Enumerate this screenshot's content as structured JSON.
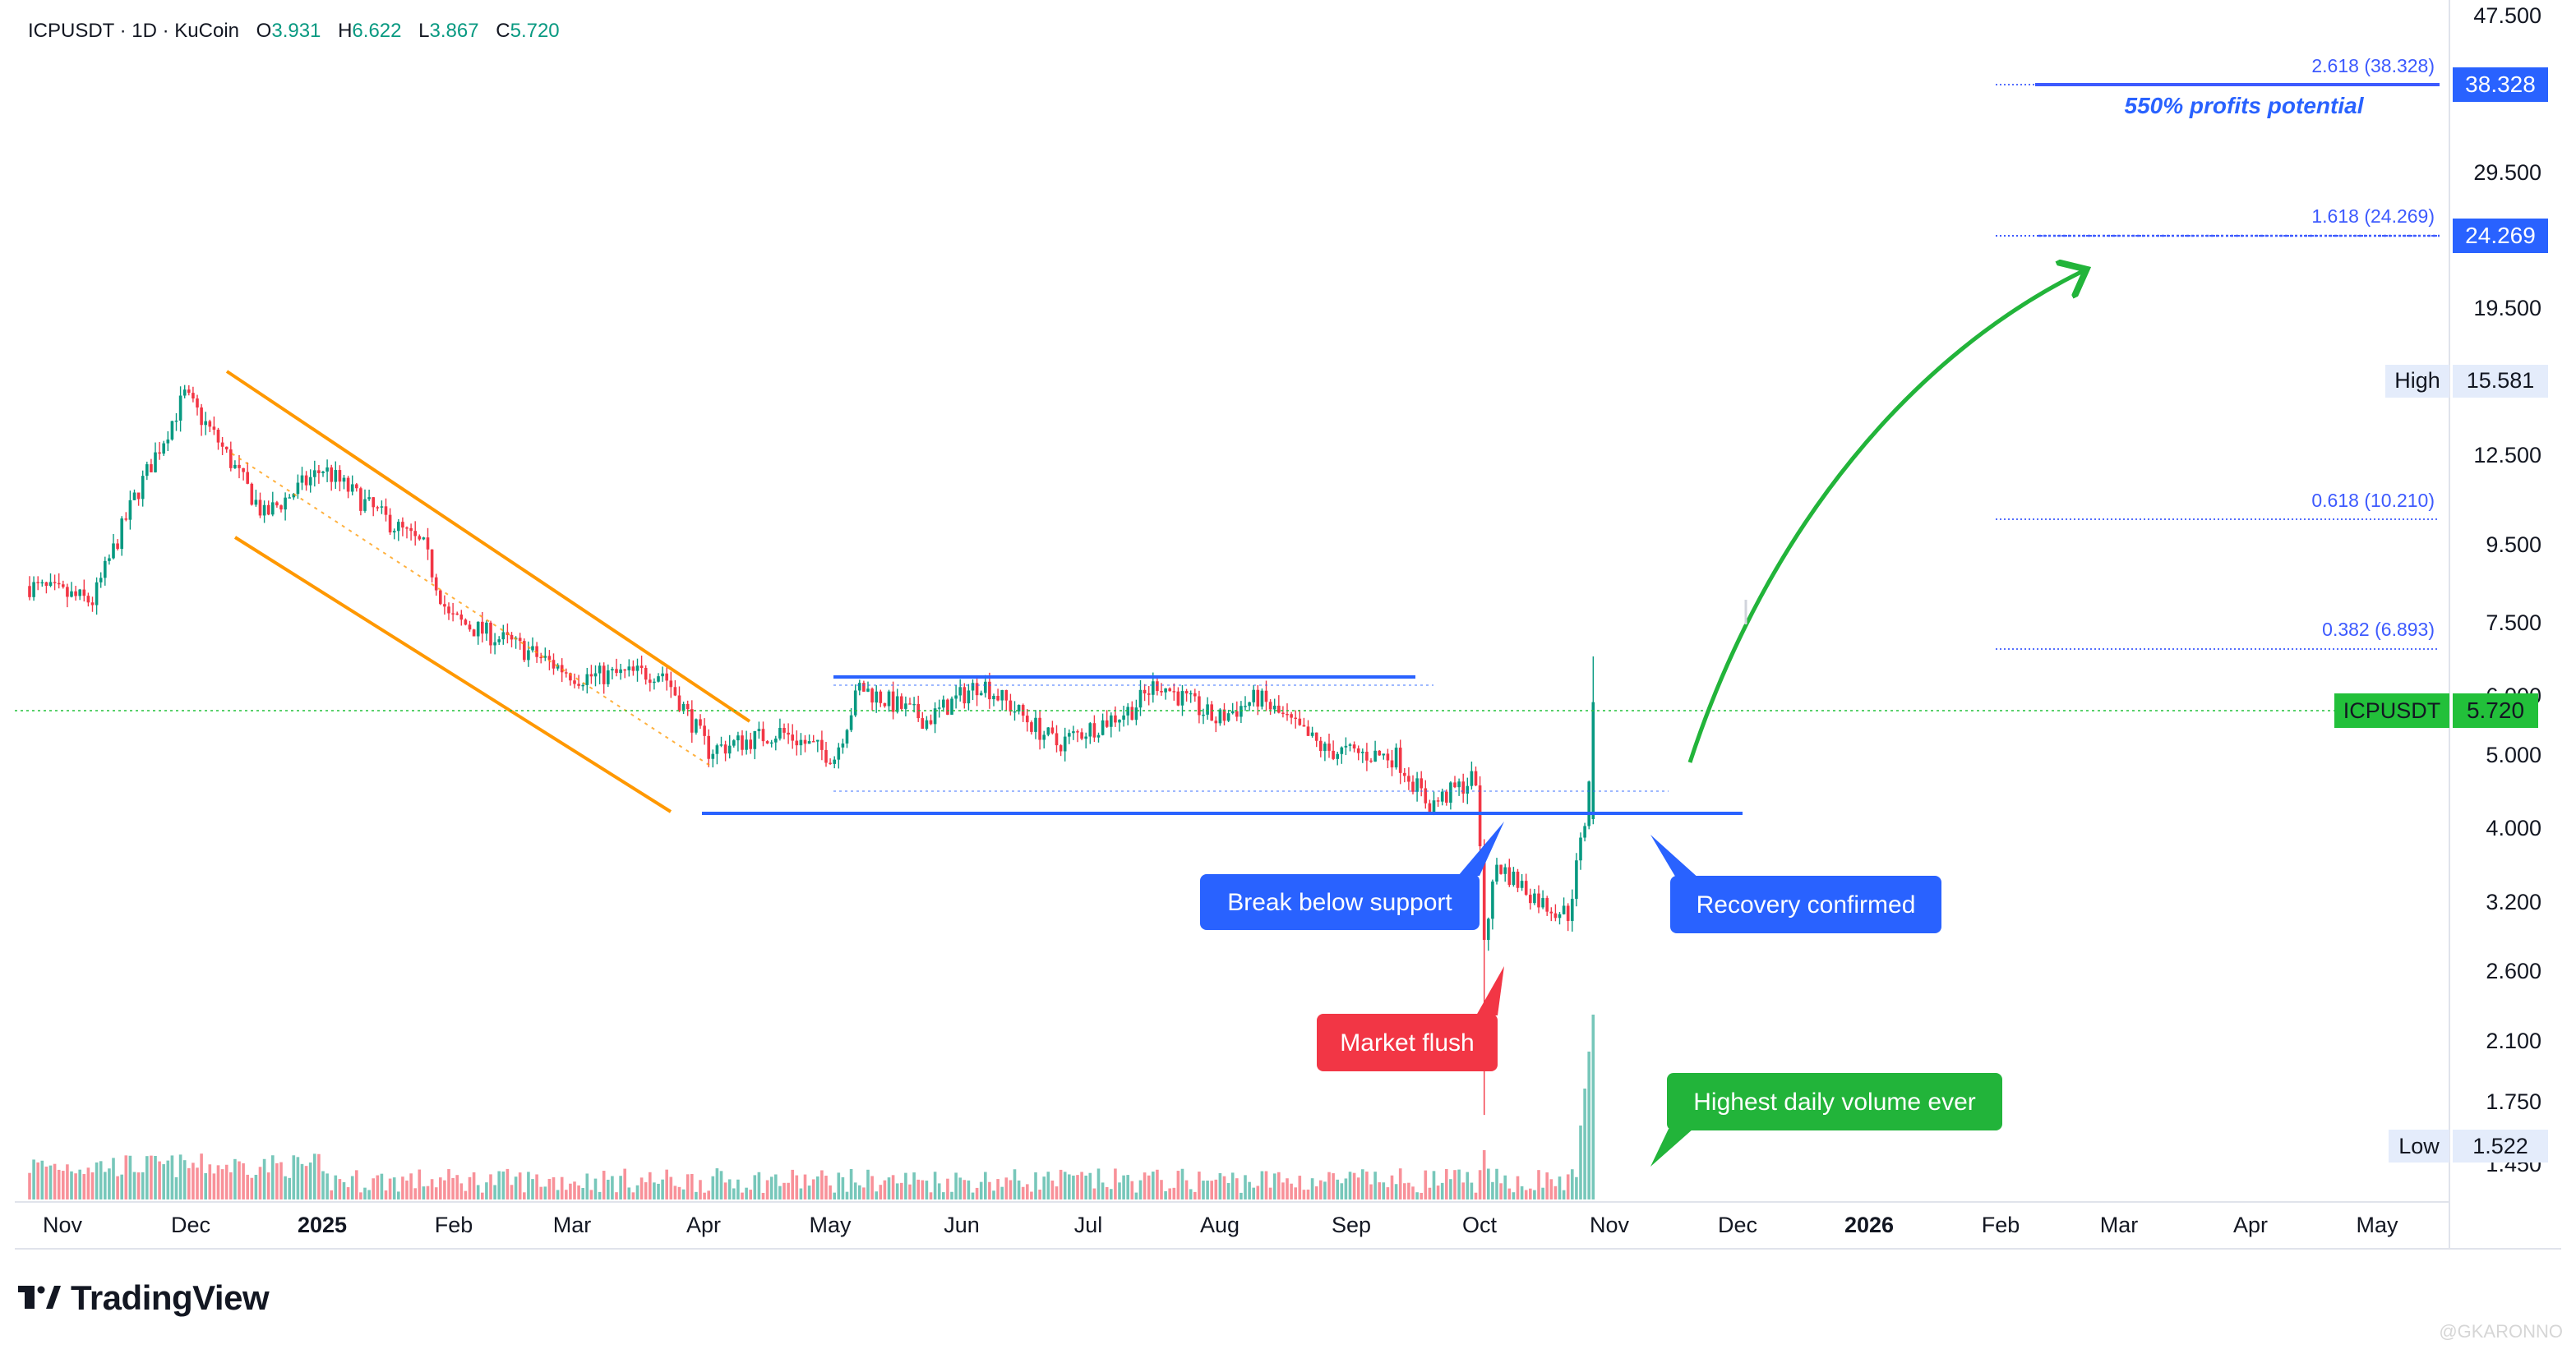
{
  "header": {
    "symbol": "ICPUSDT",
    "interval": "1D",
    "exchange": "KuCoin",
    "open_label": "O",
    "open": "3.931",
    "high_label": "H",
    "high": "6.622",
    "low_label": "L",
    "low": "3.867",
    "close_label": "C",
    "close": "5.720"
  },
  "brand": {
    "name": "TradingView"
  },
  "watermark": "@GKARONNO",
  "colors": {
    "up": "#089981",
    "down": "#f23645",
    "support": "#2962ff",
    "channel": "#ff9800",
    "arrow": "#22b43a",
    "fib": "#3d5afe",
    "price": "#22c03a"
  },
  "chart_data": {
    "type": "candlestick",
    "symbol": "ICPUSDT",
    "interval": "1D",
    "scale": "log",
    "ylim": [
      1.35,
      47.5
    ],
    "x_ticks": [
      "Nov",
      "Dec",
      "2025",
      "Feb",
      "Mar",
      "Apr",
      "May",
      "Jun",
      "Jul",
      "Aug",
      "Sep",
      "Oct",
      "Nov",
      "Dec",
      "2026",
      "Feb",
      "Mar",
      "Apr",
      "May"
    ],
    "y_ticks": [
      "47.500",
      "38.328",
      "29.500",
      "24.269",
      "19.500",
      "15.581",
      "12.500",
      "9.500",
      "7.500",
      "6.000",
      "5.720",
      "5.000",
      "4.000",
      "3.200",
      "2.600",
      "2.100",
      "1.750",
      "1.522",
      "1.450"
    ],
    "price_path": [
      [
        "2024-10-28",
        8.3
      ],
      [
        "2024-11-12",
        7.9
      ],
      [
        "2024-11-22",
        11.0
      ],
      [
        "2024-12-04",
        15.3
      ],
      [
        "2024-12-12",
        13.2
      ],
      [
        "2024-12-23",
        10.4
      ],
      [
        "2025-01-06",
        12.1
      ],
      [
        "2025-01-17",
        10.7
      ],
      [
        "2025-01-30",
        9.4
      ],
      [
        "2025-02-05",
        7.5
      ],
      [
        "2025-02-20",
        6.9
      ],
      [
        "2025-03-08",
        6.2
      ],
      [
        "2025-03-28",
        6.3
      ],
      [
        "2025-04-08",
        4.9
      ],
      [
        "2025-04-25",
        5.2
      ],
      [
        "2025-05-08",
        4.8
      ],
      [
        "2025-05-14",
        6.0
      ],
      [
        "2025-05-30",
        5.4
      ],
      [
        "2025-06-12",
        6.1
      ],
      [
        "2025-06-30",
        5.0
      ],
      [
        "2025-07-18",
        5.6
      ],
      [
        "2025-07-24",
        6.1
      ],
      [
        "2025-08-07",
        5.4
      ],
      [
        "2025-08-17",
        5.8
      ],
      [
        "2025-09-02",
        4.9
      ],
      [
        "2025-09-19",
        4.8
      ],
      [
        "2025-09-27",
        4.1
      ],
      [
        "2025-10-08",
        4.5
      ],
      [
        "2025-10-10",
        2.7
      ],
      [
        "2025-10-13",
        3.4
      ],
      [
        "2025-10-24",
        3.0
      ],
      [
        "2025-10-30",
        2.9
      ],
      [
        "2025-11-03",
        3.9
      ],
      [
        "2025-11-04",
        4.5
      ],
      [
        "2025-11-05",
        5.72
      ]
    ],
    "last_candle": {
      "open": 3.931,
      "high": 6.622,
      "low": 3.867,
      "close": 5.72
    },
    "all_time_high": 15.581,
    "all_time_low": 1.522,
    "support_level": 4.2,
    "range_top": 6.45,
    "fib_levels": [
      {
        "ratio": "0.382",
        "label": "0.382 (6.893)",
        "value": 6.893
      },
      {
        "ratio": "0.618",
        "label": "0.618 (10.210)",
        "value": 10.21
      },
      {
        "ratio": "1.618",
        "label": "1.618 (24.269)",
        "value": 24.269
      },
      {
        "ratio": "2.618",
        "label": "2.618 (38.328)",
        "value": 38.328
      }
    ],
    "price_tags": {
      "current": {
        "name": "ICPUSDT",
        "value": "5.720"
      },
      "high": {
        "name": "High",
        "value": "15.581"
      },
      "low": {
        "name": "Low",
        "value": "1.522"
      },
      "target1": {
        "value": "24.269"
      },
      "target2": {
        "value": "38.328"
      }
    },
    "annotations": {
      "profit": "550% profits potential",
      "break": "Break below support",
      "recovery": "Recovery confirmed",
      "flush": "Market flush",
      "volume": "Highest daily volume ever"
    }
  }
}
